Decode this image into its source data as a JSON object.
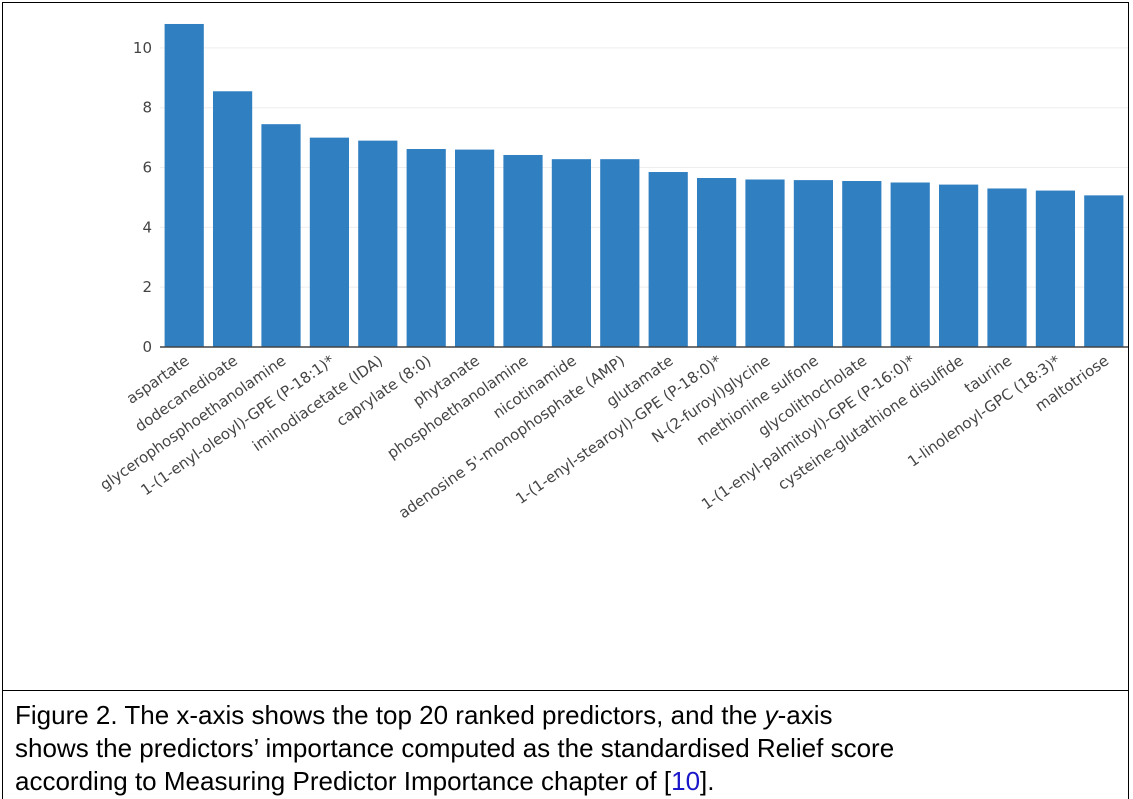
{
  "chart_data": {
    "type": "bar",
    "categories": [
      "aspartate",
      "dodecanedioate",
      "glycerophosphoethanolamine",
      "1-(1-enyl-oleoyl)-GPE (P-18:1)*",
      "iminodiacetate (IDA)",
      "caprylate (8:0)",
      "phytanate",
      "phosphoethanolamine",
      "nicotinamide",
      "adenosine 5'-monophosphate (AMP)",
      "glutamate",
      "1-(1-enyl-stearoyl)-GPE (P-18:0)*",
      "N-(2-furoyl)glycine",
      "methionine sulfone",
      "glycolithocholate",
      "1-(1-enyl-palmitoyl)-GPE (P-16:0)*",
      "cysteine-glutathione disulfide",
      "taurine",
      "1-linolenoyl-GPC (18:3)*",
      "maltotriose"
    ],
    "values": [
      10.8,
      8.55,
      7.45,
      7.0,
      6.9,
      6.62,
      6.6,
      6.42,
      6.28,
      6.28,
      5.85,
      5.65,
      5.6,
      5.58,
      5.55,
      5.5,
      5.43,
      5.3,
      5.23,
      5.07
    ],
    "yticks": [
      "0",
      "2",
      "4",
      "6",
      "8",
      "10"
    ],
    "ylim": [
      0,
      11
    ],
    "title": "",
    "xlabel": "",
    "ylabel": "",
    "grid": "horizontal",
    "bar_color": "#2f7fc1",
    "grid_color": "#eeeeee",
    "axis_color": "#444444"
  },
  "caption": {
    "line1": "Figure 2.  The x-axis shows the top 20 ranked predictors,  and the ",
    "line1_italic": "y",
    "line1_end": "-axis",
    "line2": "shows the predictors’ importance computed as the standardised Relief score",
    "line3_start": "according to Measuring Predictor Importance chapter of [",
    "line3_ref": "10",
    "line3_end": "]."
  }
}
